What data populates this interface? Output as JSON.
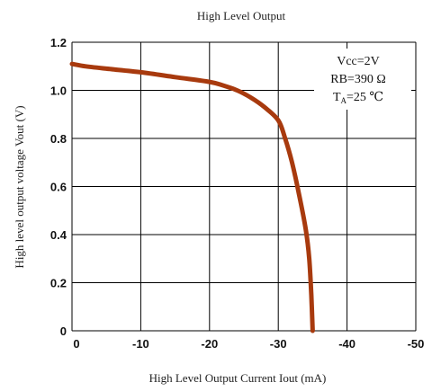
{
  "chart_data": {
    "type": "line",
    "title": "High Level Output",
    "xlabel": "High Level Output Current   Iout (mA)",
    "ylabel": "High level output voltage Vout (V)",
    "xlim": [
      0,
      -50
    ],
    "ylim": [
      0,
      1.2
    ],
    "x_ticks": [
      0,
      -10,
      -20,
      -30,
      -40,
      -50
    ],
    "y_ticks": [
      0,
      0.2,
      0.4,
      0.6,
      0.8,
      1.0,
      1.2
    ],
    "x_tick_labels": [
      "0",
      "-10",
      "-20",
      "-30",
      "-40",
      "-50"
    ],
    "y_tick_labels": [
      "0",
      "0.2",
      "0.4",
      "0.6",
      "0.8",
      "1.0",
      "1.2"
    ],
    "grid": true,
    "series": [
      {
        "color": "#a83a0e",
        "x": [
          0,
          -2,
          -5,
          -10,
          -15,
          -20,
          -22,
          -24,
          -26,
          -28,
          -30,
          -31,
          -32,
          -33,
          -34,
          -34.5,
          -34.8,
          -35
        ],
        "y": [
          1.11,
          1.1,
          1.09,
          1.075,
          1.055,
          1.035,
          1.02,
          1.0,
          0.97,
          0.93,
          0.875,
          0.8,
          0.7,
          0.57,
          0.42,
          0.3,
          0.15,
          0.0
        ]
      }
    ],
    "annotation": {
      "line1": "Vcc=2V",
      "line2": "RB=390 Ω",
      "line3_prefix": "T",
      "line3_sub": "A",
      "line3_suffix": "=25 ℃"
    }
  }
}
